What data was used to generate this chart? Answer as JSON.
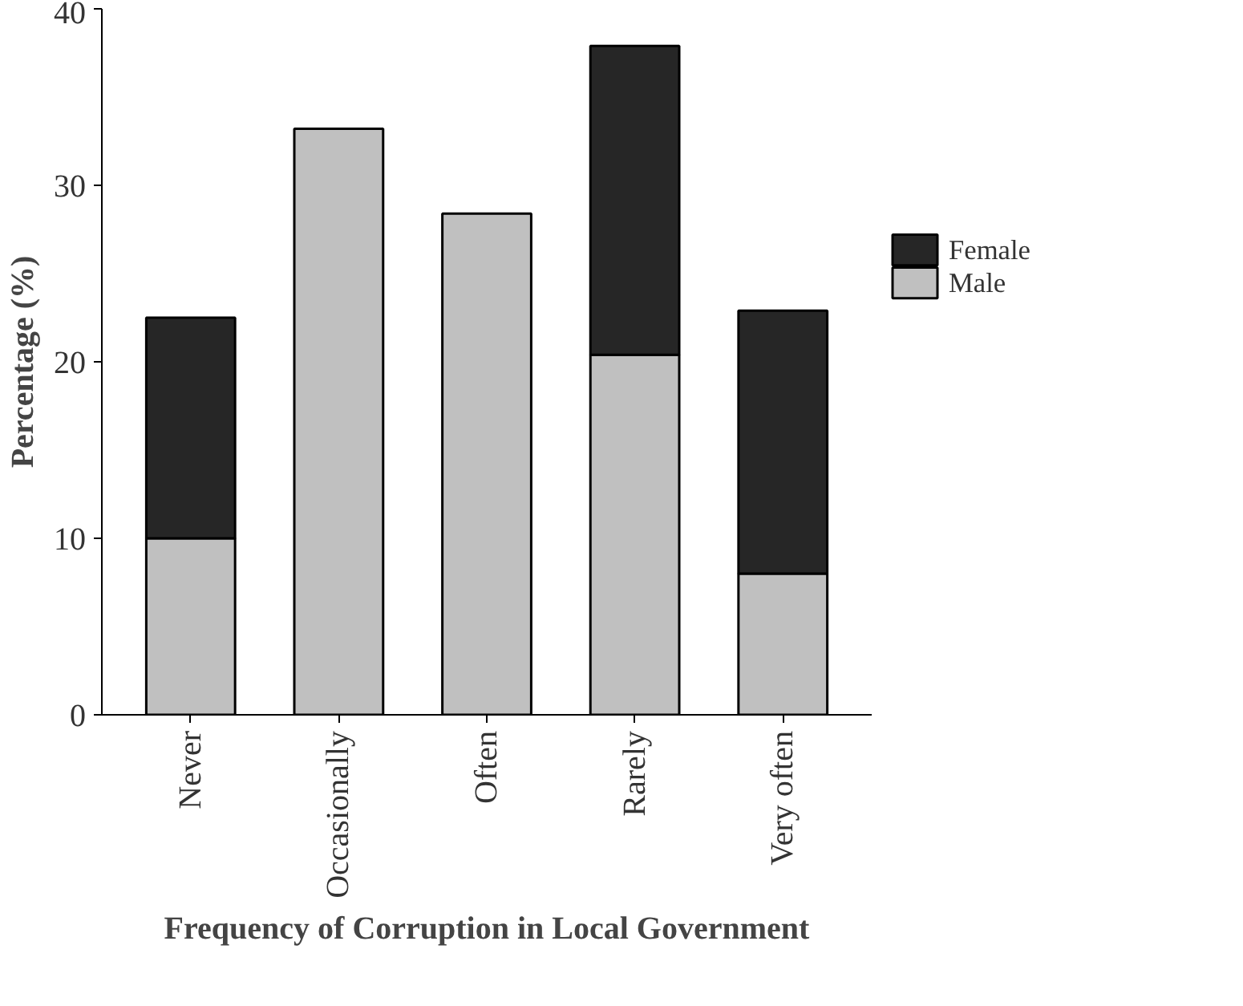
{
  "chart_data": {
    "type": "bar",
    "stacked": true,
    "xlabel": "Frequency of Corruption in Local Government",
    "ylabel": "Percentage (%)",
    "categories": [
      "Never",
      "Occasionally",
      "Often",
      "Rarely",
      "Very often"
    ],
    "series": [
      {
        "name": "Male",
        "color": "#c0c0c0",
        "values": [
          10,
          33.2,
          28.4,
          20.4,
          8.0
        ]
      },
      {
        "name": "Female",
        "color": "#262626",
        "values": [
          12.5,
          0,
          0,
          17.5,
          14.9
        ]
      }
    ],
    "ylim": [
      0,
      40
    ],
    "yticks": [
      0,
      10,
      20,
      30,
      40
    ],
    "grid": false,
    "legend": "right"
  }
}
